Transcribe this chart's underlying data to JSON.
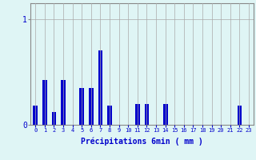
{
  "title": "",
  "xlabel": "Précipitations 6min ( mm )",
  "ylabel": "",
  "categories": [
    0,
    1,
    2,
    3,
    4,
    5,
    6,
    7,
    8,
    9,
    10,
    11,
    12,
    13,
    14,
    15,
    16,
    17,
    18,
    19,
    20,
    21,
    22,
    23
  ],
  "values": [
    0.18,
    0.42,
    0.12,
    0.42,
    0.0,
    0.35,
    0.35,
    0.7,
    0.18,
    0.0,
    0.0,
    0.2,
    0.2,
    0.0,
    0.2,
    0.0,
    0.0,
    0.0,
    0.0,
    0.0,
    0.0,
    0.0,
    0.18,
    0.0
  ],
  "bar_color": "#0000cc",
  "background_color": "#dff5f5",
  "grid_color": "#aaaaaa",
  "ytick_labels": [
    "0",
    "1"
  ],
  "ytick_values": [
    0,
    1
  ],
  "ylim": [
    0,
    1.15
  ],
  "xlim": [
    -0.5,
    23.5
  ]
}
